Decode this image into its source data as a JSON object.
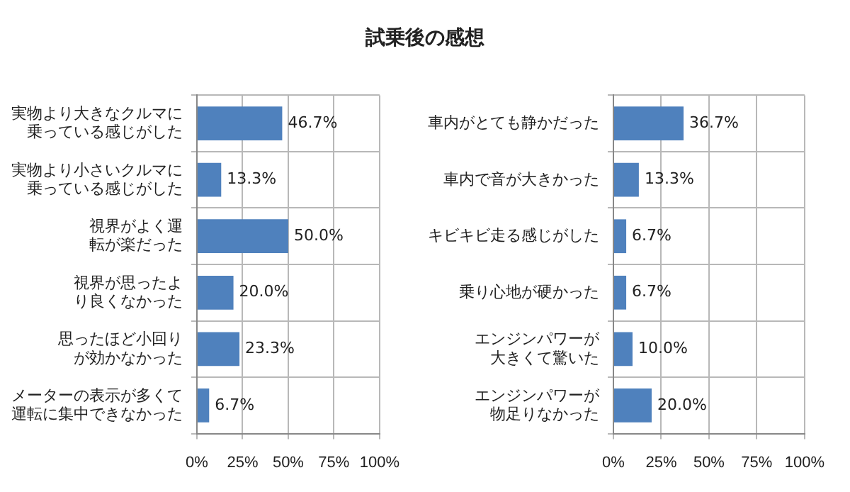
{
  "chart_data": [
    {
      "type": "bar",
      "orientation": "horizontal",
      "title": "試乗後の感想",
      "categories": [
        "実物より大きなクルマに乗っている感じがした",
        "実物より小さいクルマに乗っている感じがした",
        "視界がよく運転が楽だった",
        "視界が思ったより良くなかった",
        "思ったほど小回りが効かなかった",
        "メーターの表示が多くて運転に集中できなかった"
      ],
      "values": [
        46.7,
        13.3,
        50.0,
        20.0,
        23.3,
        6.7
      ],
      "value_labels": [
        "46.7%",
        "13.3%",
        "50.0%",
        "20.0%",
        "23.3%",
        "6.7%"
      ],
      "color": "#4f81bd",
      "xlim": [
        0,
        100
      ],
      "xticks": [
        {
          "value": 0,
          "label": "0%"
        },
        {
          "value": 25,
          "label": "25%"
        },
        {
          "value": 50,
          "label": "50%"
        },
        {
          "value": 75,
          "label": "75%"
        },
        {
          "value": 100,
          "label": "100%"
        }
      ],
      "grid": true
    },
    {
      "type": "bar",
      "orientation": "horizontal",
      "categories": [
        "車内がとても静かだった",
        "車内で音が大きかった",
        "キビキビ走る感じがした",
        "乗り心地が硬かった",
        "エンジンパワーが大きくて驚いた",
        "エンジンパワーが物足りなかった"
      ],
      "values": [
        36.7,
        13.3,
        6.7,
        6.7,
        10.0,
        20.0
      ],
      "value_labels": [
        "36.7%",
        "13.3%",
        "6.7%",
        "6.7%",
        "10.0%",
        "20.0%"
      ],
      "color": "#4f81bd",
      "xlim": [
        0,
        100
      ],
      "xticks": [
        {
          "value": 0,
          "label": "0%"
        },
        {
          "value": 25,
          "label": "25%"
        },
        {
          "value": 50,
          "label": "50%"
        },
        {
          "value": 75,
          "label": "75%"
        },
        {
          "value": 100,
          "label": "100%"
        }
      ],
      "grid": true
    }
  ]
}
